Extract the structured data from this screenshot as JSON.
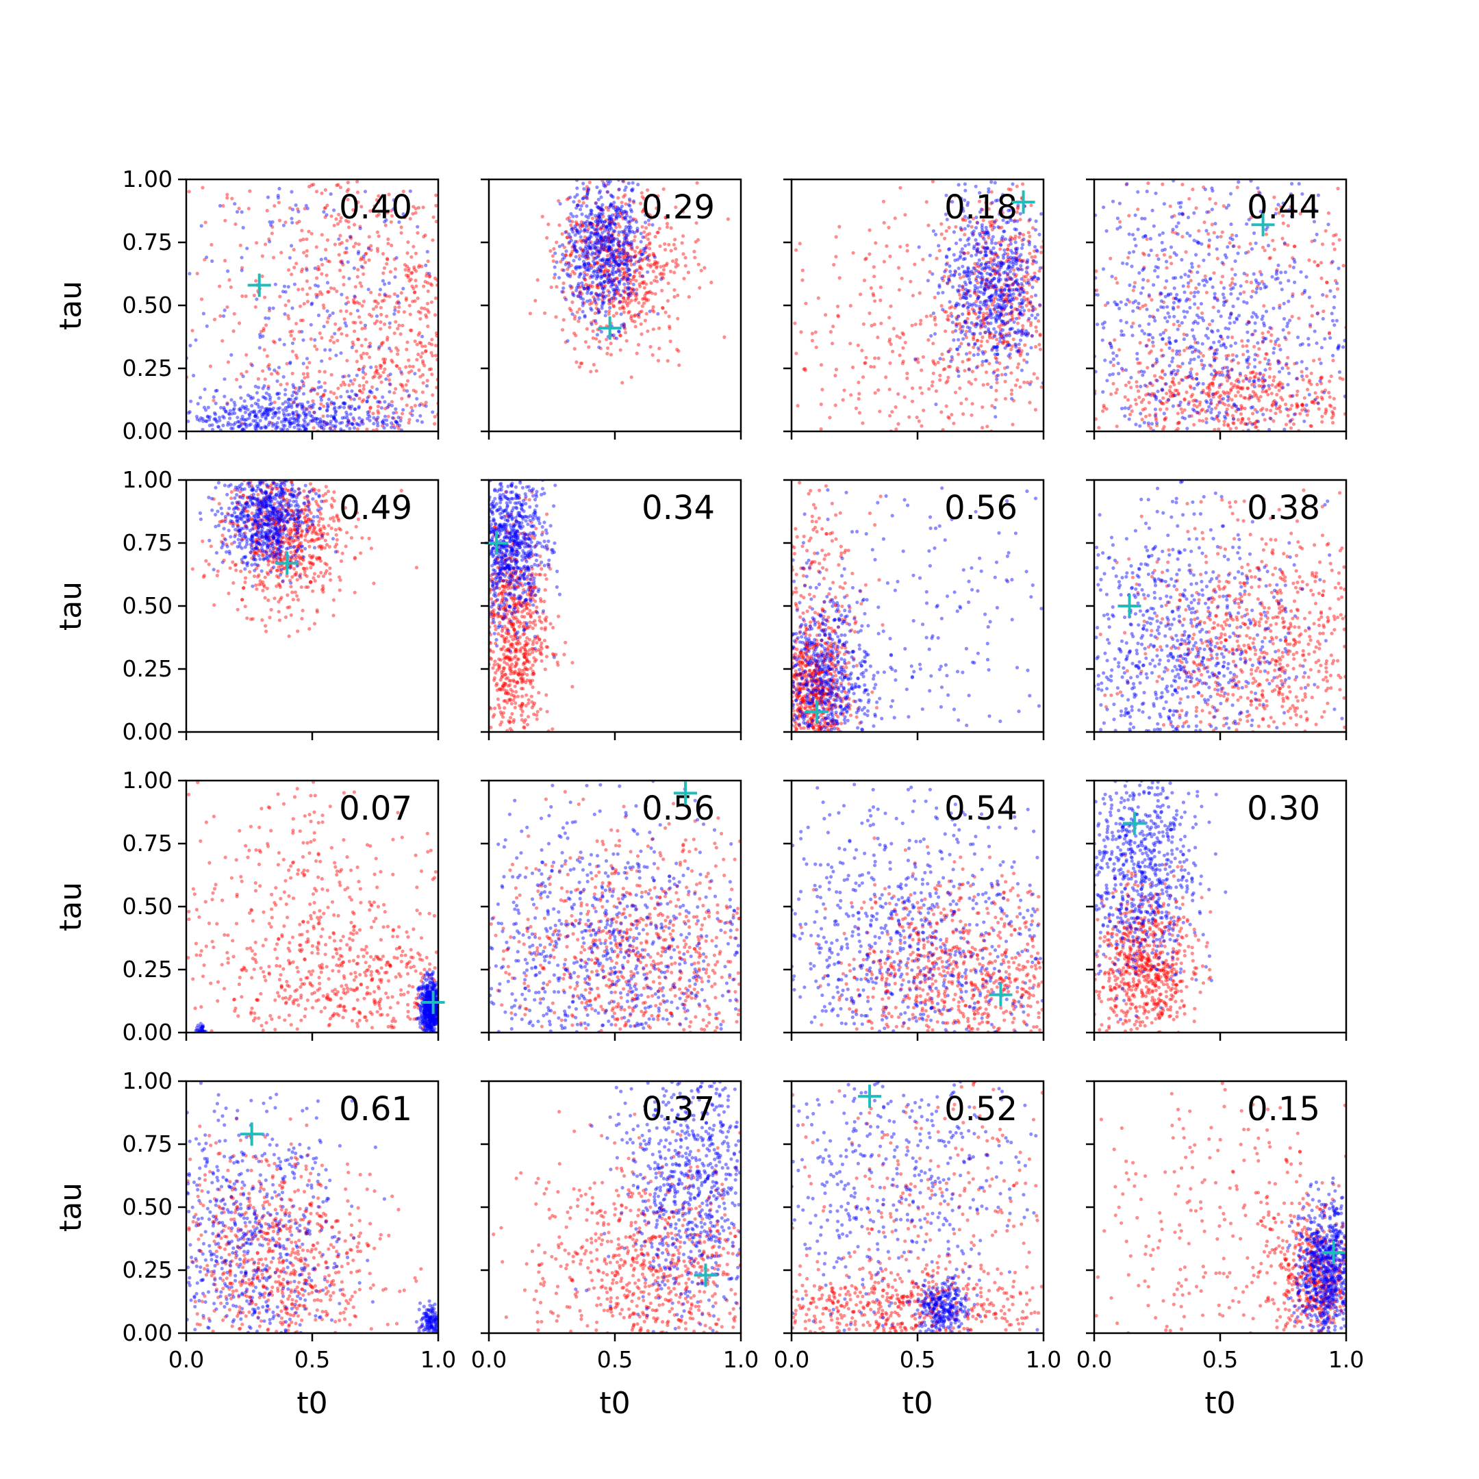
{
  "chart_data": {
    "type": "scatter",
    "layout": {
      "rows": 4,
      "cols": 4
    },
    "xlabel": "t0",
    "ylabel": "tau",
    "xlim": [
      0,
      1
    ],
    "ylim": [
      0,
      1
    ],
    "x_ticks": [
      "0.0",
      "0.5",
      "1.0"
    ],
    "y_ticks": [
      "0.00",
      "0.25",
      "0.50",
      "0.75",
      "1.00"
    ],
    "grid": false,
    "legend": "none",
    "colors": {
      "series_a": "#0000ff",
      "series_b": "#ff0000",
      "marker": "#22bbbb"
    },
    "panels": [
      {
        "label": "0.40",
        "marker": [
          0.29,
          0.58
        ],
        "series_b": [
          {
            "center": [
              0.85,
              0.25
            ],
            "spread": [
              0.25,
              0.35
            ],
            "weight": 0.6
          },
          {
            "center": [
              0.6,
              0.55
            ],
            "spread": [
              0.35,
              0.35
            ],
            "weight": 0.4
          }
        ],
        "series_a": [
          {
            "center": [
              0.4,
              0.05
            ],
            "spread": [
              0.25,
              0.06
            ],
            "weight": 0.7
          },
          {
            "center": [
              0.5,
              0.5
            ],
            "spread": [
              0.35,
              0.35
            ],
            "weight": 0.3
          }
        ]
      },
      {
        "label": "0.29",
        "marker": [
          0.48,
          0.41
        ],
        "series_b": [
          {
            "center": [
              0.52,
              0.65
            ],
            "spread": [
              0.13,
              0.16
            ],
            "weight": 1
          }
        ],
        "series_a": [
          {
            "center": [
              0.45,
              0.72
            ],
            "spread": [
              0.08,
              0.14
            ],
            "weight": 1
          }
        ]
      },
      {
        "label": "0.18",
        "marker": [
          0.92,
          0.91
        ],
        "series_b": [
          {
            "center": [
              0.83,
              0.55
            ],
            "spread": [
              0.12,
              0.2
            ],
            "weight": 0.55
          },
          {
            "center": [
              0.5,
              0.3
            ],
            "spread": [
              0.35,
              0.3
            ],
            "weight": 0.45
          }
        ],
        "series_a": [
          {
            "center": [
              0.8,
              0.58
            ],
            "spread": [
              0.1,
              0.17
            ],
            "weight": 1
          }
        ]
      },
      {
        "label": "0.44",
        "marker": [
          0.67,
          0.82
        ],
        "series_b": [
          {
            "center": [
              0.55,
              0.12
            ],
            "spread": [
              0.3,
              0.08
            ],
            "weight": 0.5
          },
          {
            "center": [
              0.5,
              0.5
            ],
            "spread": [
              0.35,
              0.35
            ],
            "weight": 0.5
          }
        ],
        "series_a": [
          {
            "center": [
              0.45,
              0.4
            ],
            "spread": [
              0.3,
              0.35
            ],
            "weight": 1
          }
        ]
      },
      {
        "label": "0.49",
        "marker": [
          0.4,
          0.67
        ],
        "series_b": [
          {
            "center": [
              0.4,
              0.78
            ],
            "spread": [
              0.12,
              0.14
            ],
            "weight": 1
          }
        ],
        "series_a": [
          {
            "center": [
              0.32,
              0.85
            ],
            "spread": [
              0.09,
              0.1
            ],
            "weight": 1
          }
        ]
      },
      {
        "label": "0.34",
        "marker": [
          0.03,
          0.75
        ],
        "series_b": [
          {
            "center": [
              0.1,
              0.4
            ],
            "spread": [
              0.07,
              0.22
            ],
            "weight": 1
          }
        ],
        "series_a": [
          {
            "center": [
              0.08,
              0.75
            ],
            "spread": [
              0.07,
              0.15
            ],
            "weight": 1
          }
        ]
      },
      {
        "label": "0.56",
        "marker": [
          0.1,
          0.08
        ],
        "series_b": [
          {
            "center": [
              0.08,
              0.15
            ],
            "spread": [
              0.07,
              0.14
            ],
            "weight": 0.75
          },
          {
            "center": [
              0.1,
              0.6
            ],
            "spread": [
              0.1,
              0.25
            ],
            "weight": 0.25
          }
        ],
        "series_a": [
          {
            "center": [
              0.12,
              0.2
            ],
            "spread": [
              0.1,
              0.18
            ],
            "weight": 0.7
          },
          {
            "center": [
              0.5,
              0.4
            ],
            "spread": [
              0.35,
              0.3
            ],
            "weight": 0.3
          }
        ]
      },
      {
        "label": "0.38",
        "marker": [
          0.14,
          0.5
        ],
        "series_b": [
          {
            "center": [
              0.65,
              0.35
            ],
            "spread": [
              0.22,
              0.22
            ],
            "weight": 1
          }
        ],
        "series_a": [
          {
            "center": [
              0.3,
              0.3
            ],
            "spread": [
              0.25,
              0.3
            ],
            "weight": 1
          }
        ]
      },
      {
        "label": "0.07",
        "marker": [
          0.98,
          0.12
        ],
        "series_b": [
          {
            "center": [
              0.65,
              0.2
            ],
            "spread": [
              0.25,
              0.15
            ],
            "weight": 0.6
          },
          {
            "center": [
              0.45,
              0.6
            ],
            "spread": [
              0.3,
              0.25
            ],
            "weight": 0.4
          }
        ],
        "series_a": [
          {
            "center": [
              0.97,
              0.1
            ],
            "spread": [
              0.02,
              0.05
            ],
            "weight": 0.95
          },
          {
            "center": [
              0.06,
              0.01
            ],
            "spread": [
              0.01,
              0.01
            ],
            "weight": 0.05
          }
        ]
      },
      {
        "label": "0.56",
        "marker": [
          0.78,
          0.95
        ],
        "series_b": [
          {
            "center": [
              0.6,
              0.3
            ],
            "spread": [
              0.3,
              0.25
            ],
            "weight": 1
          }
        ],
        "series_a": [
          {
            "center": [
              0.45,
              0.3
            ],
            "spread": [
              0.3,
              0.3
            ],
            "weight": 1
          }
        ]
      },
      {
        "label": "0.54",
        "marker": [
          0.83,
          0.15
        ],
        "series_b": [
          {
            "center": [
              0.7,
              0.2
            ],
            "spread": [
              0.25,
              0.2
            ],
            "weight": 1
          }
        ],
        "series_a": [
          {
            "center": [
              0.45,
              0.35
            ],
            "spread": [
              0.3,
              0.3
            ],
            "weight": 1
          }
        ]
      },
      {
        "label": "0.30",
        "marker": [
          0.16,
          0.83
        ],
        "series_b": [
          {
            "center": [
              0.2,
              0.25
            ],
            "spread": [
              0.1,
              0.15
            ],
            "weight": 1
          }
        ],
        "series_a": [
          {
            "center": [
              0.18,
              0.65
            ],
            "spread": [
              0.12,
              0.22
            ],
            "weight": 1
          }
        ]
      },
      {
        "label": "0.61",
        "marker": [
          0.26,
          0.79
        ],
        "series_b": [
          {
            "center": [
              0.35,
              0.3
            ],
            "spread": [
              0.2,
              0.22
            ],
            "weight": 1
          }
        ],
        "series_a": [
          {
            "center": [
              0.25,
              0.35
            ],
            "spread": [
              0.18,
              0.3
            ],
            "weight": 0.85
          },
          {
            "center": [
              0.97,
              0.05
            ],
            "spread": [
              0.02,
              0.03
            ],
            "weight": 0.15
          }
        ]
      },
      {
        "label": "0.37",
        "marker": [
          0.86,
          0.23
        ],
        "series_b": [
          {
            "center": [
              0.65,
              0.25
            ],
            "spread": [
              0.25,
              0.22
            ],
            "weight": 1
          }
        ],
        "series_a": [
          {
            "center": [
              0.82,
              0.6
            ],
            "spread": [
              0.14,
              0.25
            ],
            "weight": 1
          }
        ]
      },
      {
        "label": "0.52",
        "marker": [
          0.31,
          0.94
        ],
        "series_b": [
          {
            "center": [
              0.4,
              0.1
            ],
            "spread": [
              0.3,
              0.07
            ],
            "weight": 0.65
          },
          {
            "center": [
              0.55,
              0.45
            ],
            "spread": [
              0.3,
              0.3
            ],
            "weight": 0.35
          }
        ],
        "series_a": [
          {
            "center": [
              0.6,
              0.1
            ],
            "spread": [
              0.05,
              0.05
            ],
            "weight": 0.4
          },
          {
            "center": [
              0.4,
              0.6
            ],
            "spread": [
              0.3,
              0.3
            ],
            "weight": 0.6
          }
        ]
      },
      {
        "label": "0.15",
        "marker": [
          0.95,
          0.32
        ],
        "series_b": [
          {
            "center": [
              0.88,
              0.22
            ],
            "spread": [
              0.08,
              0.12
            ],
            "weight": 0.6
          },
          {
            "center": [
              0.55,
              0.4
            ],
            "spread": [
              0.3,
              0.3
            ],
            "weight": 0.4
          }
        ],
        "series_a": [
          {
            "center": [
              0.92,
              0.25
            ],
            "spread": [
              0.06,
              0.13
            ],
            "weight": 1
          }
        ]
      }
    ]
  }
}
